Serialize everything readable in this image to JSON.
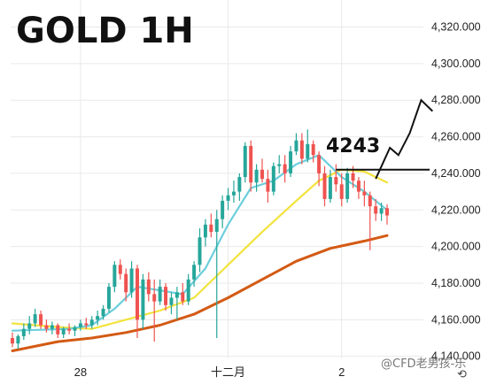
{
  "chart_data": {
    "type": "candlestick",
    "title": "GOLD 1H",
    "annotation": "4243",
    "watermark": "@CFD老男孩-乐",
    "reset_icon": "⟲",
    "xlabel": "",
    "ylabel": "",
    "ylim": [
      4135,
      4328
    ],
    "y_ticks": [
      {
        "value": 4140,
        "label": "4,140.000"
      },
      {
        "value": 4160,
        "label": "4,160.000"
      },
      {
        "value": 4180,
        "label": "4,180.000"
      },
      {
        "value": 4200,
        "label": "4,200.000"
      },
      {
        "value": 4220,
        "label": "4,220.000"
      },
      {
        "value": 4240,
        "label": "4,240.000"
      },
      {
        "value": 4260,
        "label": "4,260.000"
      },
      {
        "value": 4280,
        "label": "4,280.000"
      },
      {
        "value": 4300,
        "label": "4,300.000"
      },
      {
        "value": 4320,
        "label": "4,320.000"
      }
    ],
    "x_ticks": [
      {
        "index": 12,
        "label": "28"
      },
      {
        "index": 38,
        "label": "十二月"
      },
      {
        "index": 58,
        "label": "2"
      }
    ],
    "colors": {
      "up": "#26a69a",
      "down": "#ef5350",
      "ma_fast": "#6ccfdc",
      "ma_mid": "#f2e33c",
      "ma_slow": "#d35a14",
      "projection": "#111111",
      "grid": "#e9e9e9"
    },
    "level": 4242,
    "candles": [
      [
        4150,
        4153,
        4145,
        4147
      ],
      [
        4147,
        4152,
        4144,
        4151
      ],
      [
        4151,
        4158,
        4149,
        4155
      ],
      [
        4155,
        4162,
        4152,
        4158
      ],
      [
        4158,
        4166,
        4156,
        4163
      ],
      [
        4163,
        4165,
        4155,
        4157
      ],
      [
        4157,
        4160,
        4153,
        4155
      ],
      [
        4155,
        4159,
        4152,
        4157
      ],
      [
        4157,
        4158,
        4150,
        4152
      ],
      [
        4152,
        4156,
        4150,
        4155
      ],
      [
        4155,
        4158,
        4152,
        4154
      ],
      [
        4154,
        4157,
        4151,
        4156
      ],
      [
        4156,
        4160,
        4154,
        4158
      ],
      [
        4158,
        4161,
        4155,
        4157
      ],
      [
        4157,
        4162,
        4155,
        4160
      ],
      [
        4160,
        4165,
        4157,
        4162
      ],
      [
        4162,
        4168,
        4160,
        4166
      ],
      [
        4166,
        4180,
        4164,
        4178
      ],
      [
        4178,
        4192,
        4175,
        4190
      ],
      [
        4190,
        4193,
        4182,
        4185
      ],
      [
        4185,
        4188,
        4170,
        4175
      ],
      [
        4175,
        4192,
        4172,
        4188
      ],
      [
        4188,
        4190,
        4150,
        4160
      ],
      [
        4160,
        4185,
        4155,
        4182
      ],
      [
        4182,
        4186,
        4170,
        4174
      ],
      [
        4174,
        4182,
        4148,
        4170
      ],
      [
        4170,
        4182,
        4168,
        4178
      ],
      [
        4178,
        4180,
        4165,
        4168
      ],
      [
        4168,
        4175,
        4163,
        4172
      ],
      [
        4172,
        4178,
        4160,
        4175
      ],
      [
        4175,
        4180,
        4168,
        4170
      ],
      [
        4170,
        4185,
        4168,
        4182
      ],
      [
        4182,
        4192,
        4178,
        4190
      ],
      [
        4190,
        4210,
        4186,
        4205
      ],
      [
        4205,
        4215,
        4200,
        4212
      ],
      [
        4212,
        4218,
        4205,
        4208
      ],
      [
        4208,
        4220,
        4150,
        4215
      ],
      [
        4215,
        4228,
        4210,
        4225
      ],
      [
        4225,
        4232,
        4220,
        4228
      ],
      [
        4228,
        4236,
        4224,
        4230
      ],
      [
        4230,
        4240,
        4225,
        4238
      ],
      [
        4238,
        4257,
        4235,
        4255
      ],
      [
        4255,
        4258,
        4230,
        4235
      ],
      [
        4235,
        4245,
        4230,
        4242
      ],
      [
        4242,
        4248,
        4235,
        4237
      ],
      [
        4237,
        4242,
        4224,
        4230
      ],
      [
        4230,
        4246,
        4228,
        4244
      ],
      [
        4244,
        4250,
        4240,
        4245
      ],
      [
        4245,
        4250,
        4235,
        4240
      ],
      [
        4240,
        4255,
        4238,
        4252
      ],
      [
        4252,
        4262,
        4250,
        4258
      ],
      [
        4258,
        4262,
        4245,
        4248
      ],
      [
        4248,
        4264,
        4246,
        4256
      ],
      [
        4256,
        4258,
        4246,
        4250
      ],
      [
        4250,
        4252,
        4233,
        4240
      ],
      [
        4240,
        4244,
        4222,
        4226
      ],
      [
        4226,
        4242,
        4224,
        4238
      ],
      [
        4238,
        4245,
        4230,
        4234
      ],
      [
        4234,
        4240,
        4222,
        4226
      ],
      [
        4226,
        4243,
        4224,
        4240
      ],
      [
        4240,
        4244,
        4232,
        4236
      ],
      [
        4236,
        4238,
        4226,
        4230
      ],
      [
        4230,
        4236,
        4222,
        4228
      ],
      [
        4228,
        4230,
        4198,
        4222
      ],
      [
        4222,
        4226,
        4214,
        4218
      ],
      [
        4218,
        4224,
        4214,
        4221
      ],
      [
        4221,
        4223,
        4212,
        4217
      ]
    ],
    "ma_fast": [
      [
        0,
        4154
      ],
      [
        10,
        4155
      ],
      [
        14,
        4157
      ],
      [
        18,
        4166
      ],
      [
        22,
        4178
      ],
      [
        26,
        4176
      ],
      [
        30,
        4174
      ],
      [
        34,
        4188
      ],
      [
        38,
        4212
      ],
      [
        42,
        4232
      ],
      [
        46,
        4236
      ],
      [
        50,
        4245
      ],
      [
        54,
        4250
      ],
      [
        58,
        4238
      ],
      [
        62,
        4230
      ],
      [
        66,
        4220
      ]
    ],
    "ma_mid": [
      [
        0,
        4158
      ],
      [
        8,
        4156
      ],
      [
        14,
        4155
      ],
      [
        20,
        4160
      ],
      [
        26,
        4165
      ],
      [
        32,
        4172
      ],
      [
        38,
        4190
      ],
      [
        44,
        4208
      ],
      [
        50,
        4225
      ],
      [
        54,
        4236
      ],
      [
        58,
        4242
      ],
      [
        62,
        4241
      ],
      [
        66,
        4235
      ]
    ],
    "ma_slow": [
      [
        0,
        4143
      ],
      [
        8,
        4148
      ],
      [
        14,
        4150
      ],
      [
        20,
        4153
      ],
      [
        26,
        4157
      ],
      [
        32,
        4163
      ],
      [
        38,
        4172
      ],
      [
        44,
        4182
      ],
      [
        50,
        4192
      ],
      [
        56,
        4199
      ],
      [
        62,
        4203
      ],
      [
        66,
        4206
      ]
    ],
    "projection": [
      [
        64,
        4237
      ],
      [
        66.5,
        4254
      ],
      [
        68,
        4250
      ],
      [
        70,
        4262
      ],
      [
        72,
        4280
      ],
      [
        74,
        4274
      ]
    ]
  }
}
